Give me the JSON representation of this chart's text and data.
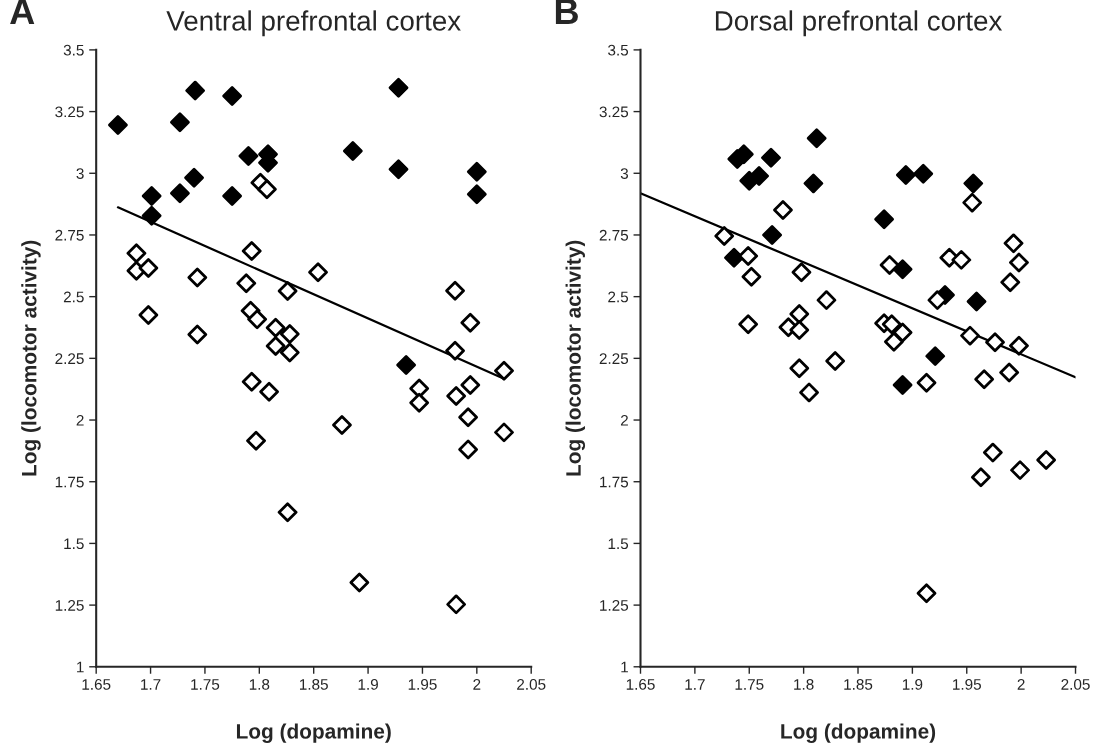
{
  "chart_data": [
    {
      "type": "scatter",
      "title": "Ventral prefrontal cortex",
      "xlabel": "Log (dopamine)",
      "ylabel": "Log (locomotor activity)",
      "annotations": [
        "A"
      ],
      "marker": "diamond",
      "grid": false,
      "legend": false,
      "xlim": [
        1.65,
        2.05
      ],
      "xticks": [
        1.65,
        1.7,
        1.75,
        1.8,
        1.85,
        1.9,
        1.95,
        2,
        2.05
      ],
      "ylim": [
        1,
        3.5
      ],
      "yticks": [
        1,
        1.25,
        1.5,
        1.75,
        2,
        2.25,
        2.5,
        2.75,
        3,
        3.25,
        3.5
      ],
      "series": [
        {
          "color": "#000000",
          "x": [
            1.67,
            1.741,
            1.775,
            1.727,
            1.928,
            1.79,
            1.808,
            1.808,
            1.886,
            1.928,
            2.0,
            2.0,
            1.701,
            1.727,
            1.74,
            1.775,
            1.701,
            1.935
          ],
          "values": [
            3.196,
            3.335,
            3.313,
            3.207,
            3.347,
            3.07,
            3.077,
            3.043,
            3.09,
            3.016,
            3.006,
            2.915,
            2.908,
            2.919,
            2.982,
            2.908,
            2.828,
            2.223
          ]
        },
        {
          "color": "#000000",
          "x": [
            1.687,
            1.687,
            1.698,
            1.698,
            1.743,
            1.743,
            1.793,
            1.788,
            1.792,
            1.798,
            1.801,
            1.807,
            1.826,
            1.854,
            1.815,
            1.828,
            1.815,
            1.828,
            1.98,
            1.994,
            1.98,
            1.793,
            1.809,
            1.797,
            1.876,
            1.947,
            1.947,
            1.981,
            1.994,
            1.992,
            1.992,
            1.826,
            1.892,
            1.981,
            2.025,
            2.025
          ],
          "values": [
            2.676,
            2.605,
            2.616,
            2.426,
            2.578,
            2.347,
            2.685,
            2.554,
            2.443,
            2.408,
            2.962,
            2.935,
            2.523,
            2.599,
            2.374,
            2.349,
            2.3,
            2.274,
            2.524,
            2.394,
            2.281,
            2.155,
            2.115,
            1.916,
            1.98,
            2.128,
            2.07,
            2.097,
            2.142,
            2.011,
            1.881,
            1.626,
            1.342,
            1.253,
            2.2,
            1.95
          ]
        },
        {
          "type": "line",
          "color": "#000000",
          "marker": "none",
          "x": [
            1.67,
            2.025
          ],
          "values": [
            2.862,
            2.167
          ]
        }
      ]
    },
    {
      "type": "scatter",
      "title": "Dorsal prefrontal cortex",
      "xlabel": "Log (dopamine)",
      "ylabel": "Log (locomotor activity)",
      "annotations": [
        "B"
      ],
      "marker": "diamond",
      "grid": false,
      "legend": false,
      "xlim": [
        1.65,
        2.05
      ],
      "xticks": [
        1.65,
        1.7,
        1.75,
        1.8,
        1.85,
        1.9,
        1.95,
        2,
        2.05
      ],
      "ylim": [
        1,
        3.5
      ],
      "yticks": [
        1,
        1.25,
        1.5,
        1.75,
        2,
        2.25,
        2.5,
        2.75,
        3,
        3.25,
        3.5
      ],
      "series": [
        {
          "color": "#000000",
          "x": [
            1.739,
            1.745,
            1.75,
            1.759,
            1.77,
            1.812,
            1.809,
            1.894,
            1.91,
            1.956,
            1.771,
            1.736,
            1.874,
            1.891,
            1.93,
            1.959,
            1.921,
            1.891
          ],
          "values": [
            3.058,
            3.077,
            2.97,
            2.989,
            3.063,
            3.142,
            2.959,
            2.993,
            2.998,
            2.959,
            2.75,
            2.658,
            2.814,
            2.611,
            2.507,
            2.48,
            2.259,
            2.142
          ]
        },
        {
          "color": "#000000",
          "x": [
            1.727,
            1.749,
            1.752,
            1.749,
            1.781,
            1.798,
            1.821,
            1.796,
            1.786,
            1.796,
            1.829,
            1.796,
            1.805,
            1.874,
            1.881,
            1.879,
            1.883,
            1.891,
            1.923,
            1.934,
            1.945,
            1.955,
            1.953,
            1.976,
            1.993,
            1.998,
            1.99,
            1.998,
            1.913,
            1.966,
            1.989,
            1.974,
            1.963,
            1.999,
            2.023,
            1.913
          ],
          "values": [
            2.746,
            2.665,
            2.581,
            2.388,
            2.851,
            2.599,
            2.486,
            2.43,
            2.376,
            2.365,
            2.239,
            2.21,
            2.112,
            2.392,
            2.388,
            2.628,
            2.317,
            2.355,
            2.486,
            2.658,
            2.649,
            2.881,
            2.342,
            2.315,
            2.716,
            2.638,
            2.558,
            2.301,
            2.151,
            2.165,
            2.193,
            1.868,
            1.768,
            1.797,
            1.838,
            1.298
          ]
        },
        {
          "type": "line",
          "color": "#000000",
          "marker": "none",
          "x": [
            1.65,
            2.05
          ],
          "values": [
            2.919,
            2.173
          ]
        }
      ]
    }
  ]
}
